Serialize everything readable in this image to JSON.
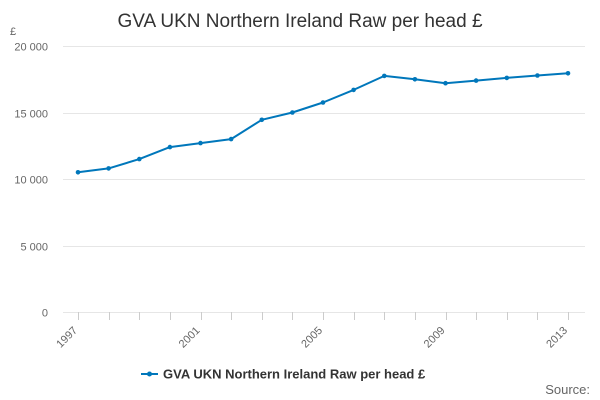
{
  "chart_data": {
    "type": "line",
    "title": "GVA UKN Northern Ireland Raw per head £",
    "ylabel": "£",
    "xlabel": "",
    "x": [
      1997,
      1998,
      1999,
      2000,
      2001,
      2002,
      2003,
      2004,
      2005,
      2006,
      2007,
      2008,
      2009,
      2010,
      2011,
      2012,
      2013
    ],
    "x_tick_labels": [
      "1997",
      "2001",
      "2005",
      "2009",
      "2013"
    ],
    "y_tick_labels": [
      "0",
      "5 000",
      "10 000",
      "15 000",
      "20 000"
    ],
    "y_ticks": [
      0,
      5000,
      10000,
      15000,
      20000
    ],
    "ylim": [
      0,
      20000
    ],
    "series": [
      {
        "name": "GVA UKN Northern Ireland Raw per head £",
        "color": "#0077bb",
        "values": [
          10500,
          10800,
          11500,
          12400,
          12700,
          13000,
          14450,
          15000,
          15750,
          16700,
          17750,
          17500,
          17200,
          17400,
          17600,
          17780,
          17950
        ]
      }
    ],
    "grid": "horizontal",
    "legend_position": "bottom",
    "source_label": "Source:"
  }
}
